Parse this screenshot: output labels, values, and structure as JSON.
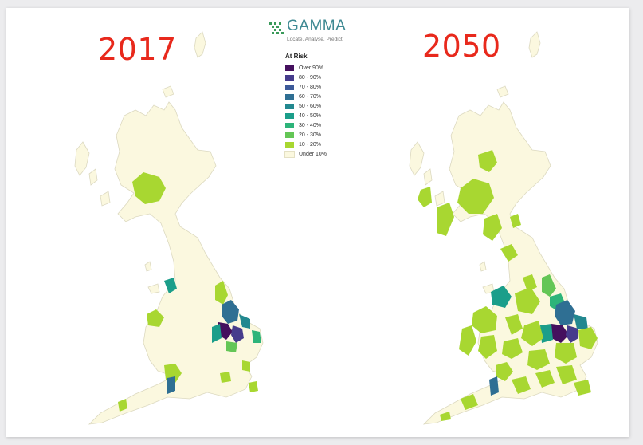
{
  "maps": {
    "left_year": "2017",
    "right_year": "2050"
  },
  "logo": {
    "name": "GAMMA",
    "tagline": "Locate, Analyse, Predict",
    "color": "#3f8a93"
  },
  "legend": {
    "title": "At Risk",
    "items": [
      {
        "label": "Over 90%",
        "color": "#45105e"
      },
      {
        "label": "80 - 90%",
        "color": "#463c8c"
      },
      {
        "label": "70 - 80%",
        "color": "#3d5a99"
      },
      {
        "label": "60 - 70%",
        "color": "#2f6f93"
      },
      {
        "label": "50 - 60%",
        "color": "#22888f"
      },
      {
        "label": "40 - 50%",
        "color": "#1b9e8a"
      },
      {
        "label": "30 - 40%",
        "color": "#2db47a"
      },
      {
        "label": "20 - 30%",
        "color": "#64c656"
      },
      {
        "label": "10 - 20%",
        "color": "#a8d731"
      },
      {
        "label": "Under 10%",
        "color": "#fbf8df"
      }
    ]
  },
  "colors": {
    "land": "#fbf8df",
    "land_outline": "#dcd9c0",
    "title_red": "#e8291c"
  }
}
